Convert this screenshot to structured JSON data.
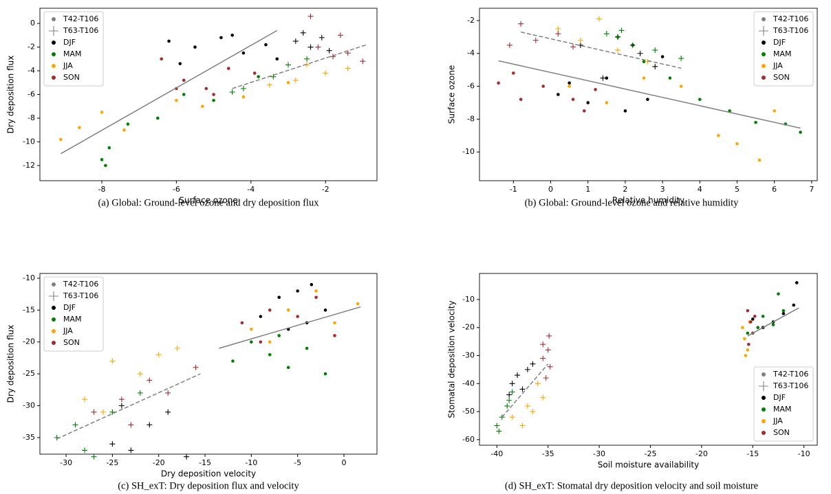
{
  "chart_data": [
    {
      "type": "scatter",
      "caption": "(a) Global: Ground-level ozone and dry deposition flux",
      "xlabel": "Surface ozone",
      "ylabel": "Dry deposition flux",
      "xlim": [
        -9.66,
        -0.62
      ],
      "ylim": [
        -13.28,
        1.28
      ],
      "xticks": [
        -8,
        -6,
        -4,
        -2
      ],
      "yticks": [
        0,
        -2,
        -4,
        -6,
        -8,
        -10,
        -12
      ],
      "legend": "upper left",
      "marker_legend": [
        {
          "name": "T42-T106",
          "marker": "dot",
          "color": "#808080"
        },
        {
          "name": "T63-T106",
          "marker": "plus",
          "color": "#808080"
        }
      ],
      "series": [
        {
          "name": "DJF",
          "color": "#000000",
          "x": [
            -6.2,
            -5.5,
            -4.8,
            -4.2,
            -3.6,
            -5.9,
            -4.5,
            -3.3
          ],
          "y": [
            -1.5,
            -2.0,
            -1.2,
            -2.5,
            -1.8,
            -3.4,
            -1.0,
            -3.0
          ],
          "plus_x": [
            -2.8,
            -2.4,
            -2.1,
            -1.9,
            -2.6
          ],
          "plus_y": [
            -1.5,
            -2.0,
            -1.2,
            -2.3,
            -0.8
          ]
        },
        {
          "name": "MAM",
          "color": "#008000",
          "x": [
            -8.0,
            -7.8,
            -7.3,
            -6.5,
            -5.8,
            -5.0,
            -3.8,
            -7.9
          ],
          "y": [
            -11.5,
            -10.5,
            -8.5,
            -8.0,
            -6.0,
            -6.5,
            -4.5,
            -12.0
          ],
          "plus_x": [
            -4.2,
            -3.4,
            -3.0,
            -2.5,
            -4.5
          ],
          "plus_y": [
            -5.5,
            -4.5,
            -3.5,
            -3.0,
            -5.8
          ]
        },
        {
          "name": "JJA",
          "color": "#ffa500",
          "x": [
            -9.1,
            -8.6,
            -8.0,
            -7.4,
            -6.0,
            -5.3,
            -4.2,
            -3.0
          ],
          "y": [
            -9.8,
            -8.8,
            -7.5,
            -9.0,
            -6.5,
            -7.0,
            -6.2,
            -5.0
          ],
          "plus_x": [
            -3.5,
            -2.8,
            -2.0,
            -1.4,
            -2.5
          ],
          "plus_y": [
            -5.2,
            -4.8,
            -4.2,
            -3.8,
            -3.5
          ]
        },
        {
          "name": "SON",
          "color": "#a52a2a",
          "x": [
            -6.4,
            -5.8,
            -5.2,
            -4.6,
            -3.9,
            -5.0,
            -6.0
          ],
          "y": [
            -3.0,
            -4.8,
            -5.5,
            -3.8,
            -4.2,
            -6.0,
            -5.5
          ],
          "plus_x": [
            -2.2,
            -1.8,
            -1.4,
            -1.0,
            -2.4,
            -1.6
          ],
          "plus_y": [
            -2.0,
            -2.8,
            -2.5,
            -3.2,
            0.6,
            -1.0
          ]
        }
      ],
      "fit_lines": [
        {
          "style": "solid",
          "color": "#808080",
          "x": [
            -9.1,
            -3.3
          ],
          "y": [
            -11,
            -0.6
          ]
        },
        {
          "style": "dashed",
          "color": "#808080",
          "x": [
            -4.5,
            -0.9
          ],
          "y": [
            -5.5,
            -1.8
          ]
        }
      ]
    },
    {
      "type": "scatter",
      "caption": "(b) Global: Ground-level ozone and relative humidity",
      "xlabel": "Relative humidity",
      "ylabel": "Surface ozone",
      "xlim": [
        -1.91,
        7.15
      ],
      "ylim": [
        -11.75,
        -1.25
      ],
      "xticks": [
        -1,
        0,
        1,
        2,
        3,
        4,
        5,
        6,
        7
      ],
      "yticks": [
        -2,
        -4,
        -6,
        -8,
        -10
      ],
      "legend": "upper right",
      "marker_legend": [
        {
          "name": "T42-T106",
          "marker": "dot",
          "color": "#808080"
        },
        {
          "name": "T63-T106",
          "marker": "plus",
          "color": "#808080"
        }
      ],
      "series": [
        {
          "name": "DJF",
          "color": "#000000",
          "x": [
            0.2,
            1.5,
            2.0,
            2.6,
            3.0,
            1.0,
            2.2,
            0.5
          ],
          "y": [
            -6.5,
            -5.5,
            -7.5,
            -6.8,
            -4.2,
            -7.0,
            -3.5,
            -5.8
          ],
          "plus_x": [
            0.8,
            1.8,
            2.8,
            1.4,
            2.4
          ],
          "plus_y": [
            -3.5,
            -3.0,
            -4.8,
            -5.5,
            -4.0
          ]
        },
        {
          "name": "MAM",
          "color": "#008000",
          "x": [
            1.8,
            2.5,
            3.2,
            4.0,
            4.8,
            5.5,
            6.3,
            6.7
          ],
          "y": [
            -3.0,
            -4.5,
            -5.5,
            -6.8,
            -7.5,
            -8.2,
            -8.3,
            -8.8
          ],
          "plus_x": [
            1.5,
            2.2,
            2.8,
            3.5,
            1.9
          ],
          "plus_y": [
            -2.8,
            -3.5,
            -3.8,
            -4.3,
            -2.6
          ]
        },
        {
          "name": "JJA",
          "color": "#ffa500",
          "x": [
            0.5,
            1.5,
            2.5,
            3.5,
            4.5,
            5.0,
            5.6,
            6.0
          ],
          "y": [
            -6.0,
            -7.0,
            -5.5,
            -6.0,
            -9.0,
            -9.5,
            -10.5,
            -7.5
          ],
          "plus_x": [
            0.2,
            0.8,
            1.3,
            1.8,
            2.6
          ],
          "plus_y": [
            -2.5,
            -3.2,
            -1.9,
            -3.8,
            -4.5
          ]
        },
        {
          "name": "SON",
          "color": "#a52a2a",
          "x": [
            -1.4,
            -0.8,
            -0.2,
            0.6,
            1.2,
            0.9,
            -1.0
          ],
          "y": [
            -5.8,
            -6.8,
            -6.0,
            -6.8,
            -6.2,
            -7.5,
            -5.2
          ],
          "plus_x": [
            -0.8,
            -0.4,
            0.2,
            0.6,
            -1.1
          ],
          "plus_y": [
            -2.2,
            -3.2,
            -2.8,
            -3.6,
            -3.5
          ]
        }
      ],
      "fit_lines": [
        {
          "style": "solid",
          "color": "#808080",
          "x": [
            -1.4,
            6.7
          ],
          "y": [
            -4.45,
            -8.55
          ]
        },
        {
          "style": "dashed",
          "color": "#808080",
          "x": [
            -0.8,
            3.5
          ],
          "y": [
            -2.7,
            -4.9
          ]
        }
      ]
    },
    {
      "type": "scatter",
      "caption": "(c) SH_exT: Dry deposition flux and velocity",
      "xlabel": "Dry deposition velocity",
      "ylabel": "Dry deposition flux",
      "xlim": [
        -32.83,
        3.57
      ],
      "ylim": [
        -37.6,
        -9.25
      ],
      "xticks": [
        -30,
        -25,
        -20,
        -15,
        -10,
        -5,
        0
      ],
      "yticks": [
        -10,
        -15,
        -20,
        -25,
        -30,
        -35
      ],
      "legend": "upper left",
      "marker_legend": [
        {
          "name": "T42-T106",
          "marker": "dot",
          "color": "#808080"
        },
        {
          "name": "T63-T106",
          "marker": "plus",
          "color": "#808080"
        }
      ],
      "series": [
        {
          "name": "DJF",
          "color": "#000000",
          "x": [
            -9,
            -7,
            -5,
            -4,
            -2,
            -6,
            -3.5
          ],
          "y": [
            -16,
            -13,
            -12,
            -17,
            -15,
            -18,
            -11
          ],
          "plus_x": [
            -25,
            -23,
            -21,
            -19,
            -17,
            -24
          ],
          "plus_y": [
            -36,
            -37,
            -33,
            -31,
            -38,
            -30
          ]
        },
        {
          "name": "MAM",
          "color": "#008000",
          "x": [
            -12,
            -10,
            -8,
            -6,
            -4,
            -2,
            -7
          ],
          "y": [
            -23,
            -20,
            -22,
            -24,
            -21,
            -25,
            -19
          ],
          "plus_x": [
            -31,
            -29,
            -27,
            -25,
            -22,
            -28
          ],
          "plus_y": [
            -35,
            -33,
            -38,
            -31,
            -28,
            -37
          ]
        },
        {
          "name": "JJA",
          "color": "#ffa500",
          "x": [
            -10,
            -6,
            -3,
            -1,
            1.5,
            -8
          ],
          "y": [
            -18,
            -15,
            -12,
            -17,
            -14,
            -20
          ],
          "plus_x": [
            -28,
            -25,
            -22,
            -20,
            -18,
            -26
          ],
          "plus_y": [
            -29,
            -23,
            -25,
            -22,
            -21,
            -31
          ]
        },
        {
          "name": "SON",
          "color": "#a52a2a",
          "x": [
            -11,
            -8,
            -5,
            -3,
            -1,
            -9
          ],
          "y": [
            -17,
            -15,
            -16,
            -13,
            -19,
            -20
          ],
          "plus_x": [
            -27,
            -24,
            -21,
            -19,
            -16,
            -23
          ],
          "plus_y": [
            -31,
            -29,
            -26,
            -28,
            -24,
            -33
          ]
        }
      ],
      "fit_lines": [
        {
          "style": "dashed",
          "color": "#808080",
          "x": [
            -31,
            -15.5
          ],
          "y": [
            -35.2,
            -25
          ]
        },
        {
          "style": "solid",
          "color": "#808080",
          "x": [
            -13.5,
            1.8
          ],
          "y": [
            -21,
            -14.5
          ]
        }
      ]
    },
    {
      "type": "scatter",
      "caption": "(d) SH_exT: Stomatal dry deposition velocity and soil moisture",
      "xlabel": "Soil moisture availability",
      "ylabel": "Stomatal deposition velocity",
      "xlim": [
        -41.7,
        -8.7
      ],
      "ylim": [
        -62,
        -0.7
      ],
      "xticks": [
        -40,
        -35,
        -30,
        -25,
        -20,
        -15,
        -10
      ],
      "yticks": [
        -10,
        -20,
        -30,
        -40,
        -50,
        -60
      ],
      "legend": "lower right",
      "marker_legend": [
        {
          "name": "T42-T106",
          "marker": "dot",
          "color": "#808080"
        },
        {
          "name": "T63-T106",
          "marker": "plus",
          "color": "#808080"
        }
      ],
      "series": [
        {
          "name": "DJF",
          "color": "#000000",
          "x": [
            -15,
            -13,
            -12,
            -11,
            -10.7,
            -14
          ],
          "y": [
            -17,
            -18,
            -15,
            -12,
            -4,
            -20
          ],
          "plus_x": [
            -38.5,
            -38,
            -37.5,
            -37,
            -36.5,
            -38.8
          ],
          "plus_y": [
            -40,
            -37,
            -42,
            -35,
            -33,
            -44
          ]
        },
        {
          "name": "MAM",
          "color": "#008000",
          "x": [
            -15.5,
            -14,
            -13,
            -12.5,
            -12,
            -14.5
          ],
          "y": [
            -22,
            -16,
            -19,
            -8,
            -14,
            -20
          ],
          "plus_x": [
            -40,
            -39.5,
            -39,
            -38.5,
            -39.8,
            -38.8
          ],
          "plus_y": [
            -55,
            -52,
            -48,
            -43,
            -57,
            -46
          ]
        },
        {
          "name": "JJA",
          "color": "#ffa500",
          "x": [
            -16,
            -15.8,
            -15.5,
            -15.3,
            -15.7
          ],
          "y": [
            -20,
            -24,
            -28,
            -18,
            -30
          ],
          "plus_x": [
            -38.5,
            -37.5,
            -36.5,
            -35.5,
            -36,
            -37
          ],
          "plus_y": [
            -52,
            -55,
            -50,
            -45,
            -40,
            -48
          ]
        },
        {
          "name": "SON",
          "color": "#a52a2a",
          "x": [
            -15.5,
            -15.2,
            -15,
            -14.8,
            -15.4
          ],
          "y": [
            -14,
            -18,
            -22,
            -16,
            -26
          ],
          "plus_x": [
            -35.5,
            -35,
            -34.8,
            -35.2,
            -34.9,
            -35.5
          ],
          "plus_y": [
            -26,
            -28,
            -34,
            -38,
            -23,
            -31
          ]
        }
      ],
      "fit_lines": [
        {
          "style": "solid",
          "color": "#808080",
          "x": [
            -15.5,
            -10.5
          ],
          "y": [
            -23,
            -13
          ]
        },
        {
          "style": "dashed",
          "color": "#808080",
          "x": [
            -39.5,
            -35
          ],
          "y": [
            -52,
            -33
          ]
        }
      ]
    }
  ]
}
